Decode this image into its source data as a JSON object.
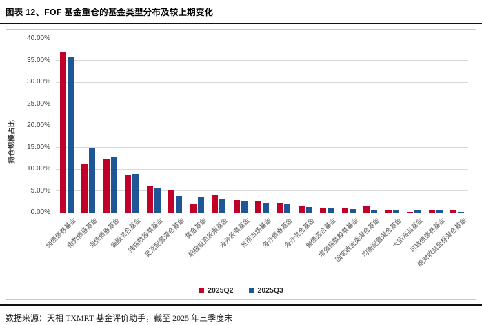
{
  "header": {
    "title": "图表 12、FOF 基金重仓的基金类型分布及较上期变化"
  },
  "footer": {
    "source": "数据来源：天相 TXMRT 基金评价助手，截至 2025 年三季度末"
  },
  "colors": {
    "q2_red": "#c00029",
    "q3_blue": "#1f5796",
    "grid": "#d9d9d9",
    "axis_text": "#404040",
    "xlabel_text": "#595959"
  },
  "chart_data": {
    "type": "bar",
    "title": "",
    "xlabel": "",
    "ylabel": "持仓规模占比",
    "ylim": [
      0,
      40
    ],
    "y_tick_step": 5,
    "y_ticks": [
      "0.00%",
      "5.00%",
      "10.00%",
      "15.00%",
      "20.00%",
      "25.00%",
      "30.00%",
      "35.00%",
      "40.00%"
    ],
    "grid": true,
    "legend_position": "bottom",
    "categories": [
      "纯债债券基金",
      "指数债券基金",
      "混债债券基金",
      "偏股混合基金",
      "纯指数股票基金",
      "灵活配置混合基金",
      "黄金基金",
      "积极投资股票基金",
      "海外股票基金",
      "货币市场基金",
      "海外债券基金",
      "海外混合基金",
      "偏债混合基金",
      "增强指数股票基金",
      "固定收益类混合基金",
      "均衡配置混合基金",
      "大宗商品基金",
      "可转债债券基金",
      "绝对收益目标混合基金"
    ],
    "series": [
      {
        "name": "2025Q2",
        "color": "#c00029",
        "values": [
          36.8,
          11.1,
          12.3,
          8.6,
          6.1,
          5.3,
          2.0,
          4.1,
          2.9,
          2.6,
          2.2,
          1.4,
          1.0,
          1.1,
          1.5,
          0.4,
          0.2,
          0.5,
          0.4
        ]
      },
      {
        "name": "2025Q3",
        "color": "#1f5796",
        "values": [
          35.7,
          15.0,
          12.8,
          8.9,
          5.7,
          3.8,
          3.5,
          3.0,
          2.7,
          2.3,
          1.9,
          1.2,
          1.0,
          0.8,
          0.5,
          0.6,
          0.5,
          0.4,
          0.1
        ]
      }
    ]
  }
}
